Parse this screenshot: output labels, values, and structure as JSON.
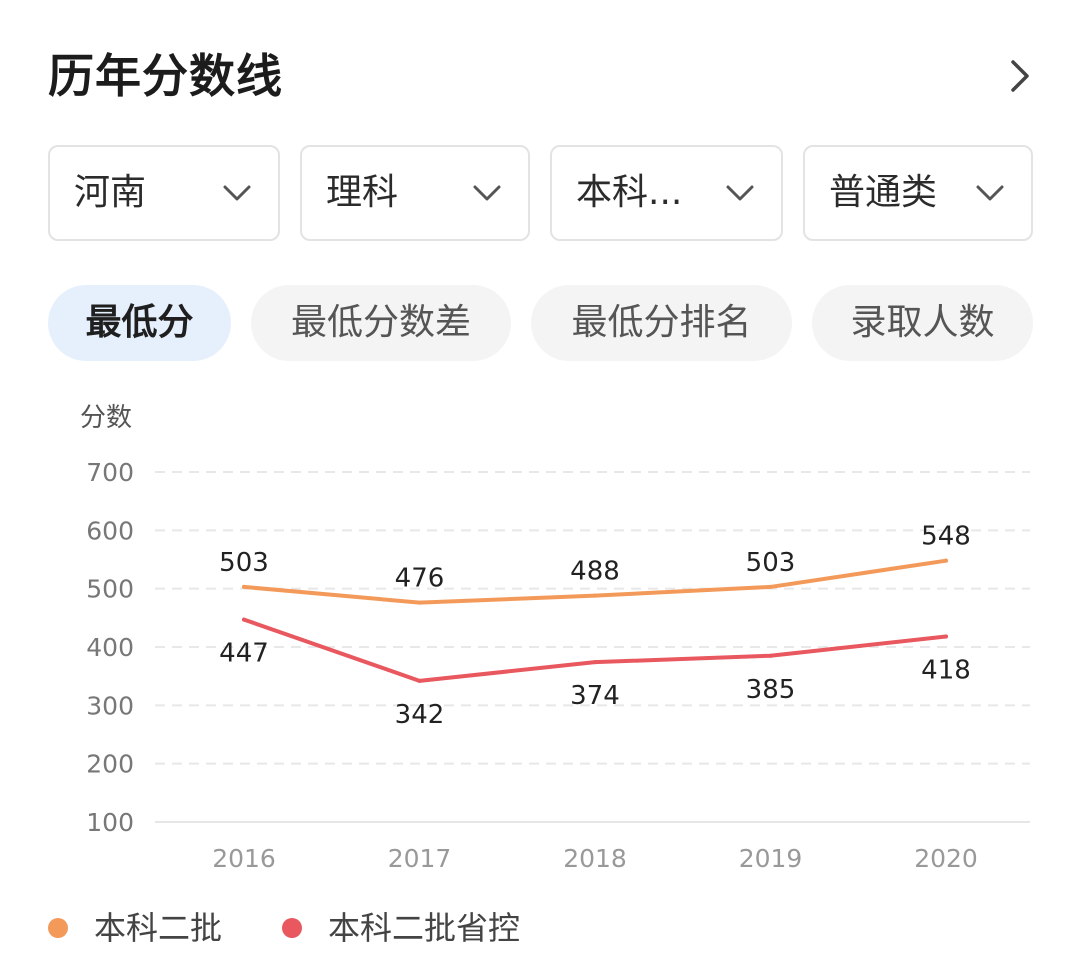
{
  "header": {
    "title": "历年分数线"
  },
  "filters": [
    {
      "label": "河南"
    },
    {
      "label": "理科"
    },
    {
      "label": "本科..."
    },
    {
      "label": "普通类"
    }
  ],
  "tabs": [
    {
      "label": "最低分",
      "active": true
    },
    {
      "label": "最低分数差",
      "active": false
    },
    {
      "label": "最低分排名",
      "active": false
    },
    {
      "label": "录取人数",
      "active": false
    }
  ],
  "colors": {
    "series1": "#f39a5a",
    "series2": "#e8585e",
    "active_tab_bg": "#e6f0fd"
  },
  "chart_data": {
    "type": "line",
    "ylabel": "分数",
    "ylim": [
      100,
      700
    ],
    "yticks": [
      100,
      200,
      300,
      400,
      500,
      600,
      700
    ],
    "categories": [
      "2016",
      "2017",
      "2018",
      "2019",
      "2020"
    ],
    "grid": true,
    "legend": "bottom-left",
    "series": [
      {
        "name": "本科二批",
        "values": [
          503,
          476,
          488,
          503,
          548
        ]
      },
      {
        "name": "本科二批省控",
        "values": [
          447,
          342,
          374,
          385,
          418
        ]
      }
    ]
  }
}
